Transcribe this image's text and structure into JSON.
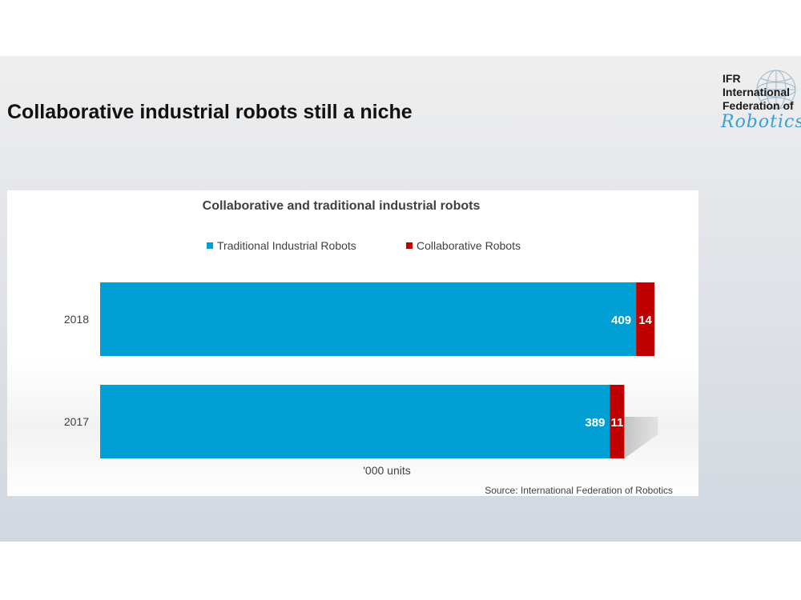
{
  "slide": {
    "title": "Collaborative industrial robots still a niche"
  },
  "logo": {
    "line1": "IFR",
    "line2": "International",
    "line3": "Federation of",
    "line4": "Robotics"
  },
  "chart_data": {
    "type": "bar",
    "orientation": "horizontal",
    "stacked": true,
    "title": "Collaborative and traditional industrial robots",
    "xlabel": "'000 units",
    "ylabel": "",
    "categories": [
      "2018",
      "2017"
    ],
    "series": [
      {
        "name": "Traditional Industrial Robots",
        "values": [
          409,
          389
        ],
        "color": "#009fd4"
      },
      {
        "name": "Collaborative Robots",
        "values": [
          14,
          11
        ],
        "color": "#c00000"
      }
    ],
    "xlim": [
      0,
      430
    ],
    "grid": false,
    "legend": "top",
    "source": "Source: International Federation of Robotics"
  }
}
